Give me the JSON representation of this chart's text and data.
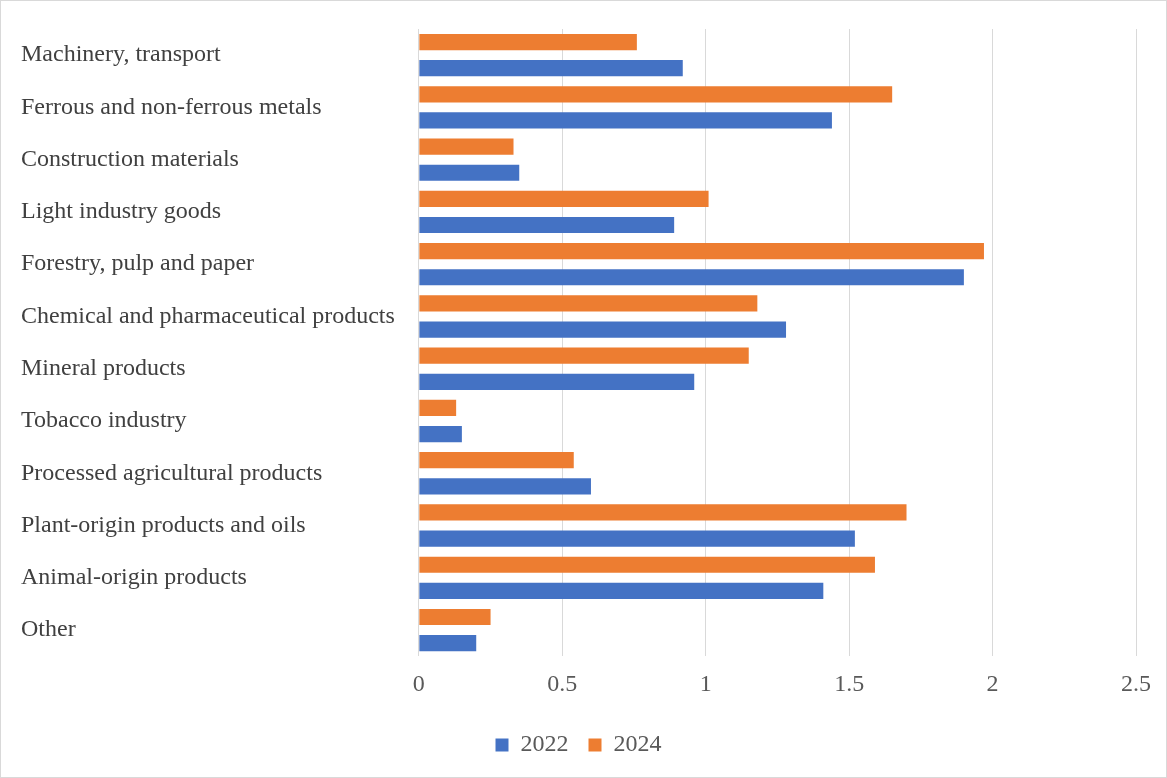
{
  "chart_data": {
    "type": "bar",
    "orientation": "horizontal",
    "categories": [
      "Machinery, transport",
      "Ferrous and non-ferrous metals",
      "Construction materials",
      "Light industry goods",
      "Forestry, pulp and paper",
      "Chemical and pharmaceutical products",
      "Mineral products",
      "Tobacco industry",
      "Processed agricultural products",
      "Plant-origin products and oils",
      "Animal-origin products",
      "Other"
    ],
    "series": [
      {
        "name": "2022",
        "color": "#4472c4",
        "values": [
          0.92,
          1.44,
          0.35,
          0.89,
          1.9,
          1.28,
          0.96,
          0.15,
          0.6,
          1.52,
          1.41,
          0.2
        ]
      },
      {
        "name": "2024",
        "color": "#ed7d31",
        "values": [
          0.76,
          1.65,
          0.33,
          1.01,
          1.97,
          1.18,
          1.15,
          0.13,
          0.54,
          1.7,
          1.59,
          0.25
        ]
      }
    ],
    "xlim": [
      0,
      2.5
    ],
    "xticks": [
      0,
      0.5,
      1,
      1.5,
      2,
      2.5
    ],
    "grid": "x",
    "legend": "bottom"
  }
}
